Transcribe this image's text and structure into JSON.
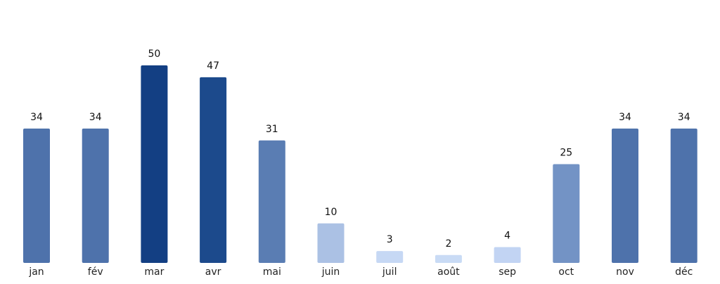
{
  "chart_data": {
    "type": "bar",
    "categories": [
      "jan",
      "fév",
      "mar",
      "avr",
      "mai",
      "juin",
      "juil",
      "août",
      "sep",
      "oct",
      "nov",
      "déc"
    ],
    "values": [
      34,
      34,
      50,
      47,
      31,
      10,
      3,
      2,
      4,
      25,
      34,
      34
    ],
    "ylim": [
      0,
      50
    ],
    "grid": false,
    "legend": "none",
    "colors": [
      "#4e72ab",
      "#4e72ab",
      "#133f83",
      "#1c4a8c",
      "#5a7db3",
      "#abc1e4",
      "#c6d8f4",
      "#c9dbf5",
      "#c2d4f3",
      "#7393c5",
      "#4e72ab",
      "#4e72ab"
    ]
  }
}
